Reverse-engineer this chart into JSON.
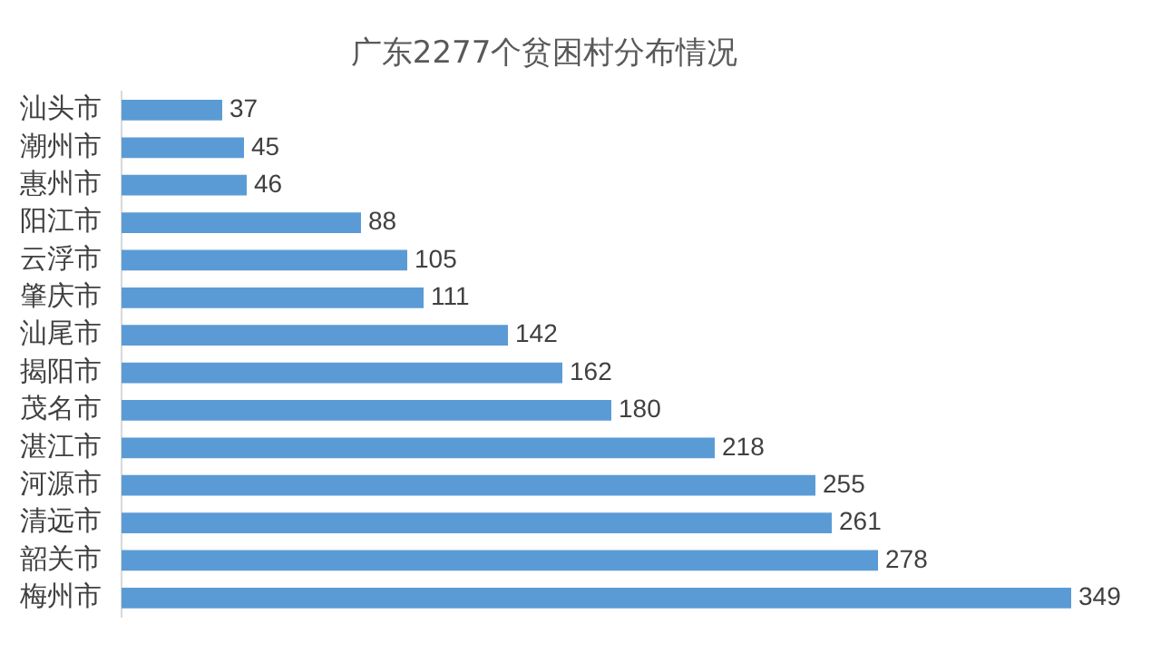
{
  "chart_data": {
    "type": "bar",
    "orientation": "horizontal",
    "title": "广东2277个贫困村分布情况",
    "categories": [
      "汕头市",
      "潮州市",
      "惠州市",
      "阳江市",
      "云浮市",
      "肇庆市",
      "汕尾市",
      "揭阳市",
      "茂名市",
      "湛江市",
      "河源市",
      "清远市",
      "韶关市",
      "梅州市"
    ],
    "values": [
      37,
      45,
      46,
      88,
      105,
      111,
      142,
      162,
      180,
      218,
      255,
      261,
      278,
      349
    ],
    "color": "#5b9bd5",
    "data_labels": true,
    "grid": false,
    "legend": false,
    "tick_labels": "y"
  }
}
